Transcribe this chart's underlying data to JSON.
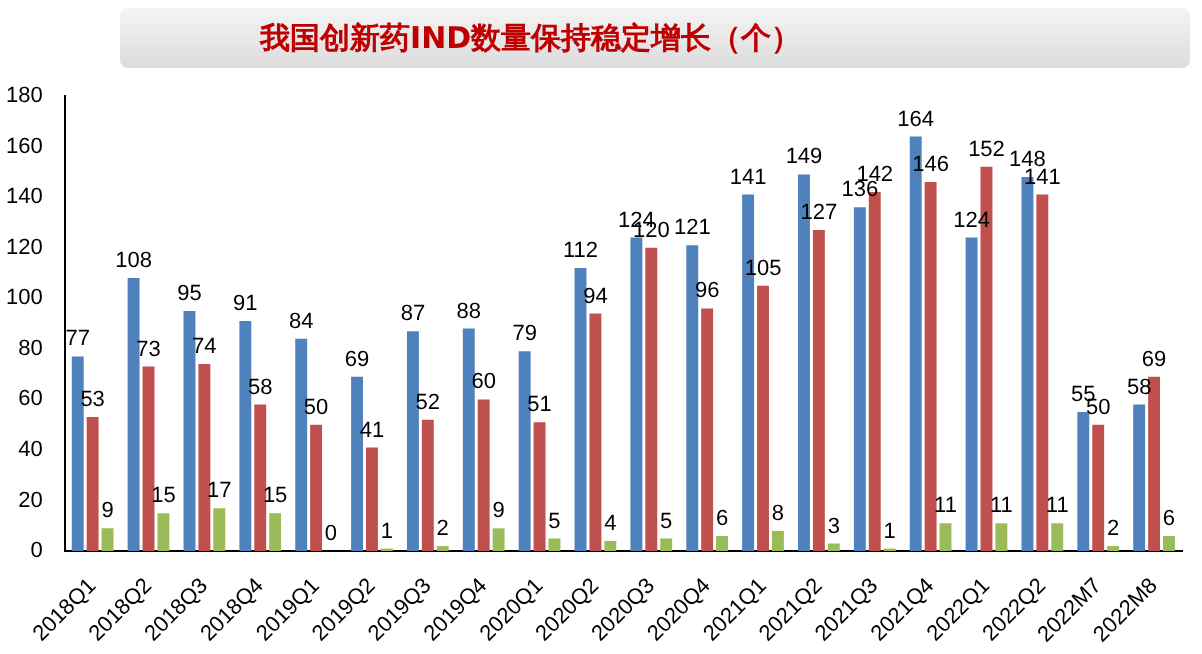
{
  "chart_data": {
    "type": "bar",
    "title": "我国创新药IND数量保持稳定增长（个）",
    "categories": [
      "2018Q1",
      "2018Q2",
      "2018Q3",
      "2018Q4",
      "2019Q1",
      "2019Q2",
      "2019Q3",
      "2019Q4",
      "2020Q1",
      "2020Q2",
      "2020Q3",
      "2020Q4",
      "2021Q1",
      "2021Q2",
      "2021Q3",
      "2021Q4",
      "2022Q1",
      "2022Q2",
      "2022M7",
      "2022M8"
    ],
    "series": [
      {
        "color": "#4f81bd",
        "values": [
          77,
          108,
          95,
          91,
          84,
          69,
          87,
          88,
          79,
          112,
          124,
          121,
          141,
          149,
          136,
          164,
          124,
          148,
          55,
          58
        ]
      },
      {
        "color": "#c0504d",
        "values": [
          53,
          73,
          74,
          58,
          50,
          41,
          52,
          60,
          51,
          94,
          120,
          96,
          105,
          127,
          142,
          146,
          152,
          141,
          50,
          69
        ]
      },
      {
        "color": "#9bbb59",
        "values": [
          9,
          15,
          17,
          15,
          0,
          1,
          2,
          9,
          5,
          4,
          5,
          6,
          8,
          3,
          1,
          11,
          11,
          11,
          2,
          6
        ]
      }
    ],
    "ylim": [
      0,
      180
    ],
    "yticks": [
      0,
      20,
      40,
      60,
      80,
      100,
      120,
      140,
      160,
      180
    ],
    "grid": false,
    "legend": false,
    "data_labels": true
  }
}
